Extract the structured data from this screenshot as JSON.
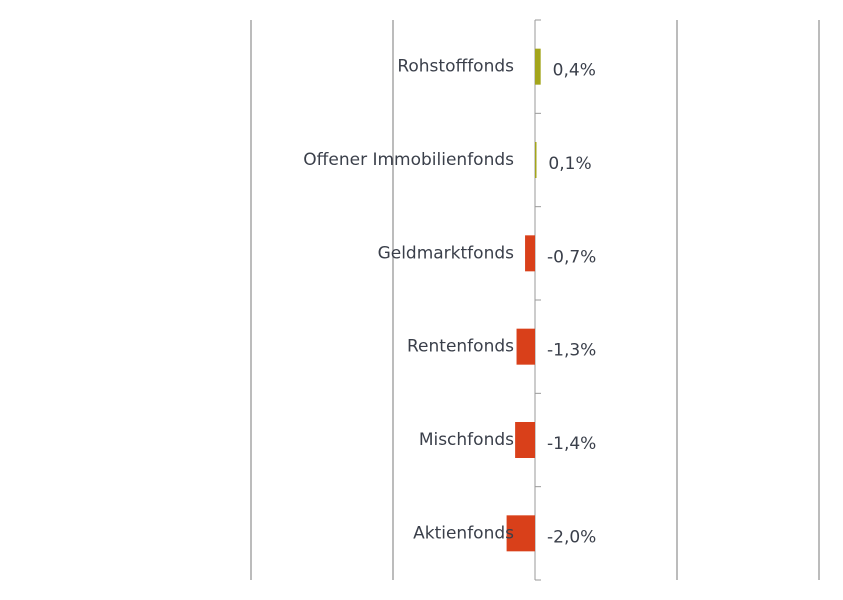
{
  "chart_data": {
    "type": "bar",
    "orientation": "horizontal",
    "categories": [
      "Rohstofffonds",
      "Offener Immobilienfonds",
      "Geldmarktfonds",
      "Rentenfonds",
      "Mischfonds",
      "Aktienfonds"
    ],
    "values": [
      0.4,
      0.1,
      -0.7,
      -1.3,
      -1.4,
      -2.0
    ],
    "value_labels": [
      "0,4%",
      "0,1%",
      "-0,7%",
      "-1,3%",
      "-1,4%",
      "-2,0%"
    ],
    "colors": [
      "#a3a51b",
      "#a3a51b",
      "#d9401a",
      "#d9401a",
      "#d9401a",
      "#d9401a"
    ],
    "xlim": [
      -20,
      20
    ],
    "xticks": [
      -20,
      -10,
      0,
      10,
      20
    ],
    "grid": true
  }
}
